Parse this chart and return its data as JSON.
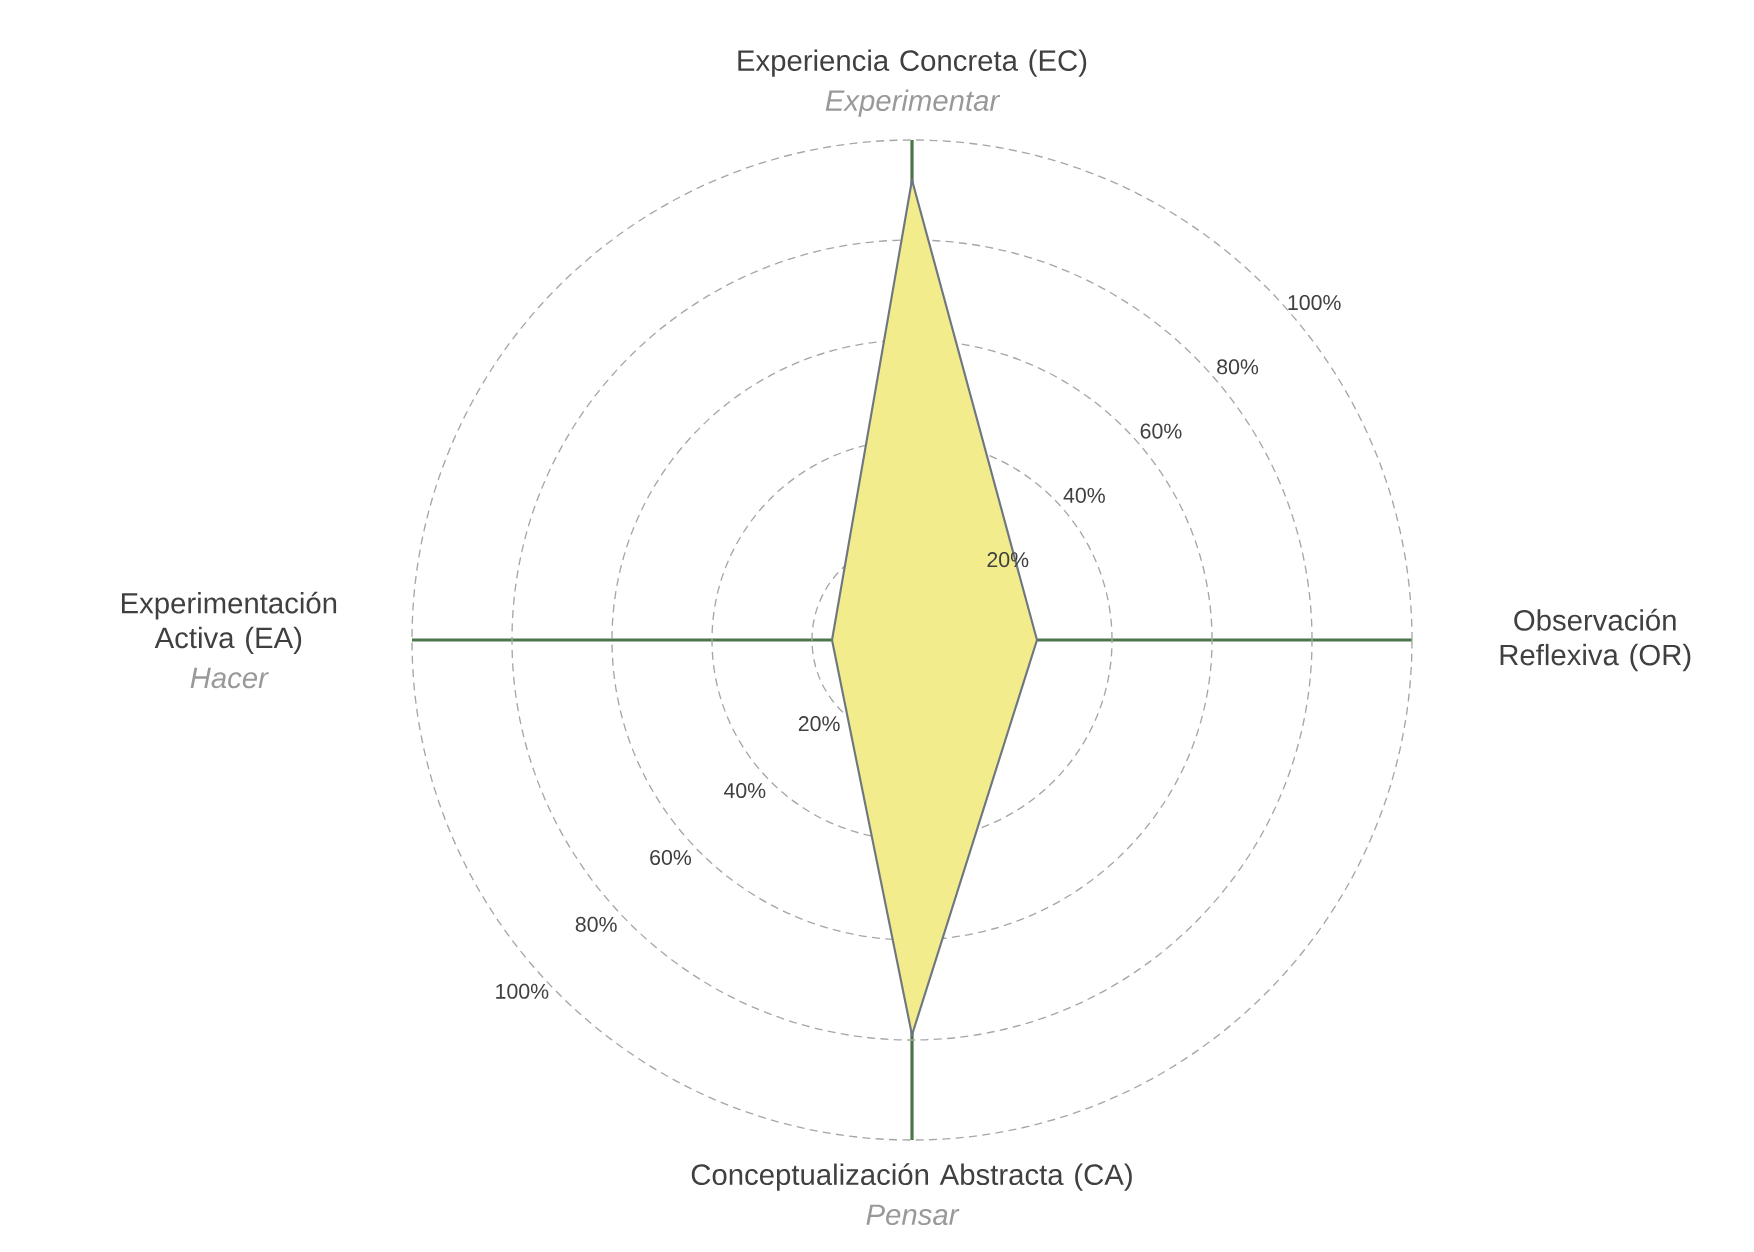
{
  "chart_data": {
    "type": "radar",
    "categories": [
      "Experiencia Concreta (EC)",
      "Observación Reflexiva (OR)",
      "Conceptualización Abstracta (CA)",
      "Experimentación Activa (EA)"
    ],
    "series": [
      {
        "color": "#f2ec8c",
        "values": [
          92,
          25,
          79,
          16
        ]
      }
    ],
    "ylim": [
      0,
      100
    ],
    "yticks": [
      {
        "value": 20,
        "label": "20%"
      },
      {
        "value": 40,
        "label": "40%"
      },
      {
        "value": 60,
        "label": "60%"
      },
      {
        "value": 80,
        "label": "80%"
      },
      {
        "value": 100,
        "label": "100%"
      }
    ],
    "grid": true,
    "annotations": [
      {
        "text": "Experimentar",
        "x": "Experiencia Concreta (EC)"
      },
      {
        "text": "Pensar",
        "x": "Conceptualización Abstracta (CA)"
      },
      {
        "text": "Hacer",
        "x": "Experimentación Activa (EA)"
      }
    ]
  }
}
